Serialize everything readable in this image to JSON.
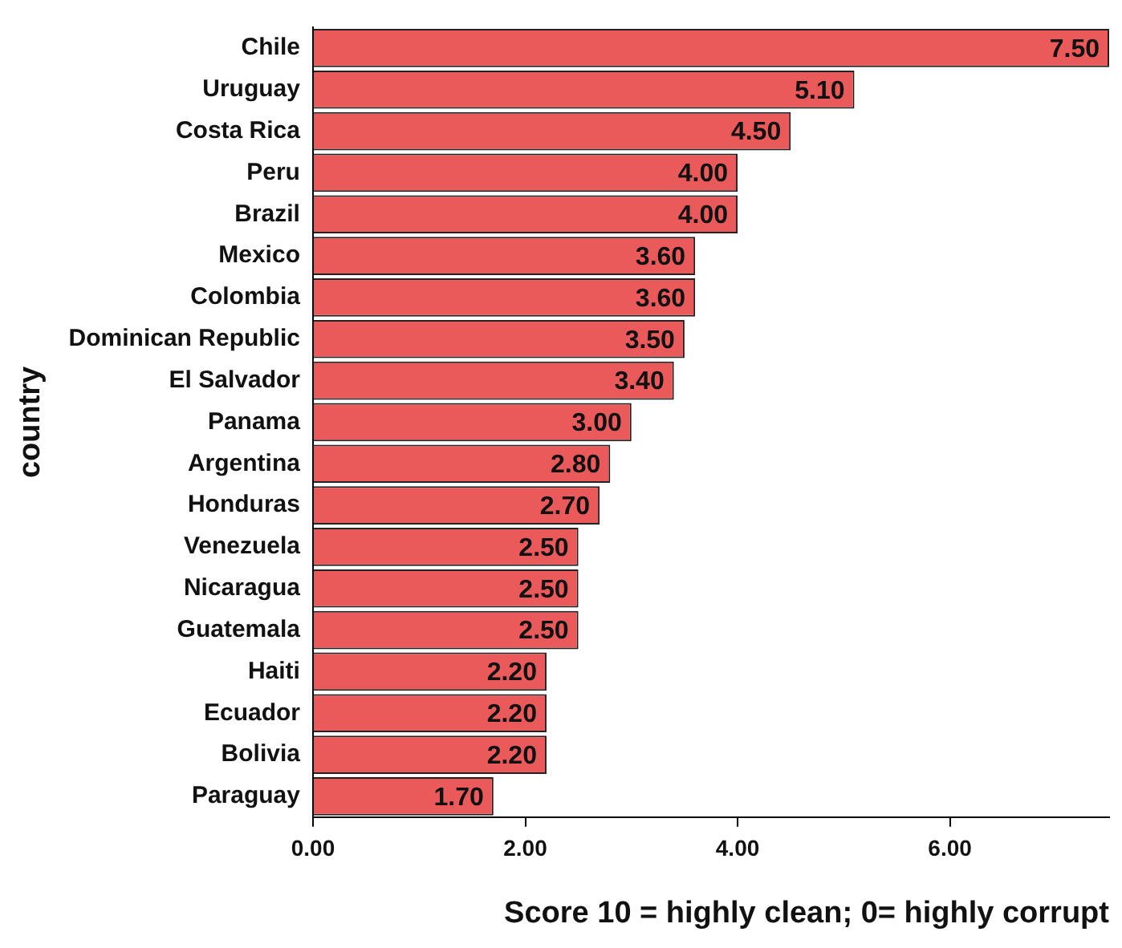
{
  "chart_data": {
    "type": "bar",
    "orientation": "horizontal",
    "xlabel": "Score 10 = highly clean; 0= highly corrupt",
    "ylabel": "country",
    "categories": [
      "Chile",
      "Uruguay",
      "Costa Rica",
      "Peru",
      "Brazil",
      "Mexico",
      "Colombia",
      "Dominican Republic",
      "El Salvador",
      "Panama",
      "Argentina",
      "Honduras",
      "Venezuela",
      "Nicaragua",
      "Guatemala",
      "Haiti",
      "Ecuador",
      "Bolivia",
      "Paraguay"
    ],
    "values": [
      7.5,
      5.1,
      4.5,
      4.0,
      4.0,
      3.6,
      3.6,
      3.5,
      3.4,
      3.0,
      2.8,
      2.7,
      2.5,
      2.5,
      2.5,
      2.2,
      2.2,
      2.2,
      1.7
    ],
    "value_labels": [
      "7.50",
      "5.10",
      "4.50",
      "4.00",
      "4.00",
      "3.60",
      "3.60",
      "3.50",
      "3.40",
      "3.00",
      "2.80",
      "2.70",
      "2.50",
      "2.50",
      "2.50",
      "2.20",
      "2.20",
      "2.20",
      "1.70"
    ],
    "color": "#eb5a5a",
    "xlim": [
      0,
      7.5
    ],
    "xticks": [
      {
        "value": 0,
        "label": "0.00"
      },
      {
        "value": 2,
        "label": "2.00"
      },
      {
        "value": 4,
        "label": "4.00"
      },
      {
        "value": 6,
        "label": "6.00"
      }
    ],
    "grid": false,
    "legend": false
  }
}
